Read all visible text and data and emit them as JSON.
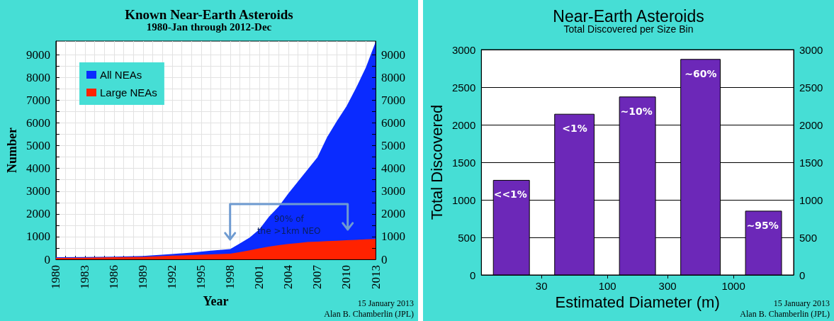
{
  "chart_data": [
    {
      "type": "area",
      "title": "Known Near-Earth Asteroids",
      "subtitle": "1980-Jan through 2012-Dec",
      "xlabel": "Year",
      "ylabel": "Number",
      "x": [
        1980,
        1983,
        1986,
        1989,
        1992,
        1994,
        1996,
        1998,
        1999,
        2000,
        2001,
        2002,
        2003,
        2004,
        2005,
        2006,
        2007,
        2008,
        2009,
        2010,
        2011,
        2012,
        2012.5,
        2013
      ],
      "series": [
        {
          "name": "All NEAs",
          "color": "#0a2bff",
          "values": [
            90,
            100,
            120,
            150,
            230,
            300,
            380,
            450,
            700,
            960,
            1320,
            1880,
            2320,
            2900,
            3430,
            3960,
            4490,
            5380,
            6080,
            6730,
            7550,
            8440,
            9000,
            9550
          ]
        },
        {
          "name": "Large NEAs",
          "color": "#ff2200",
          "values": [
            60,
            70,
            90,
            110,
            160,
            190,
            220,
            250,
            320,
            400,
            480,
            560,
            620,
            680,
            720,
            760,
            780,
            800,
            820,
            840,
            860,
            880,
            890,
            900
          ]
        }
      ],
      "xlim": [
        1980,
        2013
      ],
      "xticks": [
        1980,
        {
          "value": 1981,
          "label": null
        },
        {
          "value": 1982,
          "label": null
        },
        1983,
        {
          "value": 1984,
          "label": null
        },
        {
          "value": 1985,
          "label": null
        },
        1986,
        {
          "value": 1987,
          "label": null
        },
        {
          "value": 1988,
          "label": null
        },
        1989,
        {
          "value": 1990,
          "label": null
        },
        {
          "value": 1991,
          "label": null
        },
        1992,
        {
          "value": 1993,
          "label": null
        },
        {
          "value": 1994,
          "label": null
        },
        1995,
        {
          "value": 1996,
          "label": null
        },
        {
          "value": 1997,
          "label": null
        },
        1998,
        {
          "value": 1999,
          "label": null
        },
        {
          "value": 2000,
          "label": null
        },
        2001,
        {
          "value": 2002,
          "label": null
        },
        {
          "value": 2003,
          "label": null
        },
        2004,
        {
          "value": 2005,
          "label": null
        },
        {
          "value": 2006,
          "label": null
        },
        2007,
        {
          "value": 2008,
          "label": null
        },
        {
          "value": 2009,
          "label": null
        },
        2010,
        {
          "value": 2011,
          "label": null
        },
        {
          "value": 2012,
          "label": null
        },
        2013
      ],
      "ylim": [
        0,
        9600
      ],
      "yticks": [
        0,
        {
          "value": 500,
          "label": null
        },
        1000,
        {
          "value": 1500,
          "label": null
        },
        2000,
        {
          "value": 2500,
          "label": null
        },
        3000,
        {
          "value": 3500,
          "label": null
        },
        4000,
        {
          "value": 4500,
          "label": null
        },
        5000,
        {
          "value": 5500,
          "label": null
        },
        6000,
        {
          "value": 6500,
          "label": null
        },
        7000,
        {
          "value": 7500,
          "label": null
        },
        8000,
        {
          "value": 8500,
          "label": null
        },
        9000
      ],
      "y2lim": [
        0,
        9600
      ],
      "y2ticks": [
        0,
        {
          "value": 500,
          "label": null
        },
        1000,
        {
          "value": 1500,
          "label": null
        },
        2000,
        {
          "value": 2500,
          "label": null
        },
        3000,
        {
          "value": 3500,
          "label": null
        },
        4000,
        {
          "value": 4500,
          "label": null
        },
        5000,
        {
          "value": 5500,
          "label": null
        },
        6000,
        {
          "value": 6500,
          "label": null
        },
        7000,
        {
          "value": 7500,
          "label": null
        },
        8000,
        {
          "value": 8500,
          "label": null
        },
        9000
      ],
      "grid": true,
      "legend": "top left",
      "annotations": [
        "90% of\nthe >1km NEO",
        "15 January 2013",
        "Alan B. Chamberlin (JPL)"
      ]
    },
    {
      "type": "histogram",
      "title": "Near-Earth Asteroids",
      "subtitle": "Total Discovered per Size Bin",
      "xlabel": "Estimated Diameter (m)",
      "ylabel": "Total Discovered",
      "bins": [
        10,
        30,
        100,
        300,
        1000,
        3000
      ],
      "values": [
        1260,
        2140,
        2370,
        2870,
        850
      ],
      "color": "#6c28b8",
      "log": "x",
      "xlim": [
        10,
        3000
      ],
      "xticks": [
        30,
        100,
        300,
        1000
      ],
      "ylim": [
        0,
        3000
      ],
      "yticks": [
        0,
        500,
        1000,
        1500,
        2000,
        2500,
        3000
      ],
      "y2lim": [
        0,
        3000
      ],
      "y2ticks": [
        0,
        500,
        1000,
        1500,
        2000,
        2500,
        3000
      ],
      "grid": "y",
      "annotations": [
        {
          "text": "<<1%",
          "x": 17,
          "y": 1260
        },
        {
          "text": "<1%",
          "x": 55,
          "y": 2140
        },
        {
          "text": "~10%",
          "x": 170,
          "y": 2370
        },
        {
          "text": "~60%",
          "x": 550,
          "y": 2870
        },
        {
          "text": "~95%",
          "x": 1700,
          "y": 850
        },
        "15 January 2013",
        "Alan B. Chamberlin (JPL)"
      ]
    }
  ]
}
